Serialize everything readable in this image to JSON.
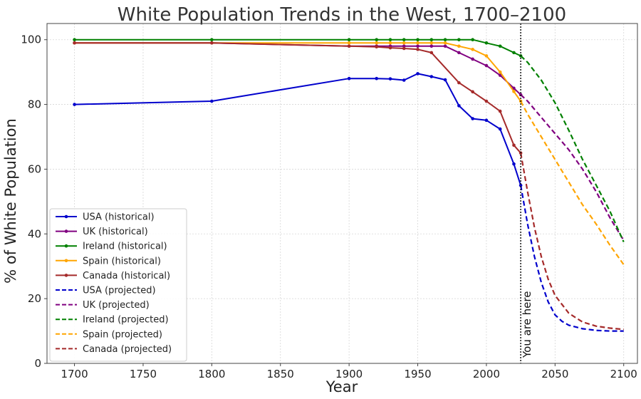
{
  "chart_data": {
    "type": "line",
    "title": "White Population Trends in the West, 1700–2100",
    "xlabel": "Year",
    "ylabel": "% of White Population",
    "xlim": [
      1680,
      2110
    ],
    "ylim": [
      0,
      105
    ],
    "xticks": [
      1700,
      1750,
      1800,
      1850,
      1900,
      1950,
      2000,
      2050,
      2100
    ],
    "yticks": [
      0,
      20,
      40,
      60,
      80,
      100
    ],
    "grid": true,
    "legend_position": "lower-left",
    "annotation": {
      "x": 2025,
      "text": "You are here"
    },
    "series": [
      {
        "name": "USA (historical)",
        "color": "#0000cc",
        "style": "solid",
        "markers": true,
        "x": [
          1700,
          1800,
          1900,
          1920,
          1930,
          1940,
          1950,
          1960,
          1970,
          1980,
          1990,
          2000,
          2010,
          2020,
          2025
        ],
        "y": [
          80,
          81,
          88,
          88,
          87.9,
          87.5,
          89.5,
          88.6,
          87.6,
          79.6,
          75.6,
          75.1,
          72.4,
          61.6,
          55
        ]
      },
      {
        "name": "UK (historical)",
        "color": "#800080",
        "style": "solid",
        "markers": true,
        "x": [
          1700,
          1800,
          1900,
          1920,
          1930,
          1940,
          1950,
          1960,
          1970,
          1980,
          1990,
          2000,
          2010,
          2020,
          2025
        ],
        "y": [
          99,
          99,
          98,
          98,
          98,
          98,
          98,
          98,
          98,
          96,
          94,
          92,
          89,
          85,
          83
        ]
      },
      {
        "name": "Ireland (historical)",
        "color": "#008000",
        "style": "solid",
        "markers": true,
        "x": [
          1700,
          1800,
          1900,
          1920,
          1930,
          1940,
          1950,
          1960,
          1970,
          1980,
          1990,
          2000,
          2010,
          2020,
          2025
        ],
        "y": [
          100,
          100,
          100,
          100,
          100,
          100,
          100,
          100,
          100,
          100,
          100,
          99,
          98,
          96,
          95
        ]
      },
      {
        "name": "Spain (historical)",
        "color": "#ffa500",
        "style": "solid",
        "markers": true,
        "x": [
          1700,
          1800,
          1900,
          1920,
          1930,
          1940,
          1950,
          1960,
          1970,
          1980,
          1990,
          2000,
          2010,
          2020,
          2025
        ],
        "y": [
          99,
          99,
          99,
          99,
          99,
          99,
          99,
          99,
          99,
          98,
          97,
          95,
          90,
          84,
          81
        ]
      },
      {
        "name": "Canada (historical)",
        "color": "#a52a2a",
        "style": "solid",
        "markers": true,
        "x": [
          1700,
          1800,
          1900,
          1920,
          1930,
          1940,
          1950,
          1960,
          1980,
          1990,
          2000,
          2010,
          2020,
          2025
        ],
        "y": [
          99,
          99,
          98,
          97.8,
          97.5,
          97.3,
          97,
          96,
          86.7,
          83.9,
          81,
          77.9,
          67.4,
          65
        ]
      },
      {
        "name": "USA (projected)",
        "color": "#0000cc",
        "style": "dashed",
        "markers": false,
        "x": [
          2025,
          2030,
          2035,
          2040,
          2045,
          2050,
          2055,
          2060,
          2070,
          2080,
          2090,
          2100
        ],
        "y": [
          55,
          43,
          33,
          25,
          19,
          15,
          13,
          11.8,
          10.7,
          10.2,
          10,
          10
        ]
      },
      {
        "name": "UK (projected)",
        "color": "#800080",
        "style": "dashed",
        "markers": false,
        "x": [
          2025,
          2030,
          2040,
          2050,
          2060,
          2070,
          2080,
          2090,
          2100
        ],
        "y": [
          83,
          81,
          76,
          71,
          66,
          60,
          53,
          45,
          38
        ]
      },
      {
        "name": "Ireland (projected)",
        "color": "#008000",
        "style": "dashed",
        "markers": false,
        "x": [
          2025,
          2030,
          2040,
          2050,
          2060,
          2070,
          2080,
          2090,
          2100
        ],
        "y": [
          95,
          93,
          87.5,
          80.5,
          72,
          63,
          55,
          47,
          37.5
        ]
      },
      {
        "name": "Spain (projected)",
        "color": "#ffa500",
        "style": "dashed",
        "markers": false,
        "x": [
          2025,
          2030,
          2040,
          2050,
          2060,
          2070,
          2080,
          2090,
          2100
        ],
        "y": [
          81,
          77,
          70,
          63,
          56,
          49,
          43,
          36.5,
          30.5
        ]
      },
      {
        "name": "Canada (projected)",
        "color": "#a52a2a",
        "style": "dashed",
        "markers": false,
        "x": [
          2025,
          2030,
          2035,
          2040,
          2045,
          2050,
          2060,
          2070,
          2080,
          2090,
          2100
        ],
        "y": [
          65,
          53,
          42,
          33,
          26,
          21,
          15.5,
          12.8,
          11.5,
          10.9,
          10.5
        ]
      }
    ]
  }
}
